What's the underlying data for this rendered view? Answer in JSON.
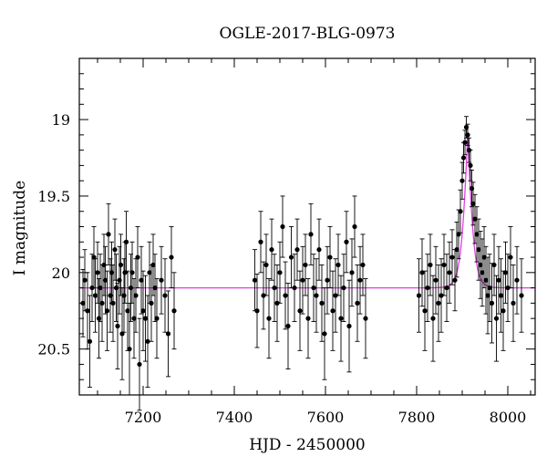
{
  "chart_data": {
    "type": "scatter",
    "title": "OGLE-2017-BLG-0973",
    "xlabel": "HJD - 2450000",
    "ylabel": "I magnitude",
    "xlim": [
      7060,
      8060
    ],
    "ylim": [
      20.8,
      18.6
    ],
    "y_inverted": true,
    "xticks": [
      7200,
      7400,
      7600,
      7800,
      8000
    ],
    "yticks": [
      19,
      19.5,
      20,
      20.5
    ],
    "tick_labels_x": [
      "7200",
      "7400",
      "7600",
      "7800",
      "8000"
    ],
    "tick_labels_y": [
      "19",
      "19.5",
      "20",
      "20.5"
    ],
    "minor_x_step": 50,
    "minor_y_step": 0.1,
    "grid": false,
    "colors": {
      "points": "#000000",
      "model": "#e040e0"
    },
    "model": {
      "baseline_mag": 20.1,
      "peak_time": 7912,
      "peak_mag": 19.1,
      "timescale": 9
    },
    "series": [
      {
        "type": "scatter",
        "x": [
          7068,
          7072,
          7078,
          7083,
          7088,
          7092,
          7095,
          7100,
          7103,
          7106,
          7110,
          7114,
          7117,
          7121,
          7124,
          7128,
          7131,
          7134,
          7138,
          7141,
          7144,
          7148,
          7151,
          7154,
          7158,
          7160,
          7163,
          7166,
          7170,
          7173,
          7176,
          7180,
          7184,
          7188,
          7192,
          7196,
          7200,
          7205,
          7210,
          7214,
          7218,
          7222,
          7226,
          7230,
          7240,
          7248,
          7255,
          7262,
          7268,
          7445,
          7450,
          7458,
          7464,
          7470,
          7476,
          7482,
          7488,
          7494,
          7500,
          7506,
          7512,
          7518,
          7525,
          7532,
          7538,
          7544,
          7550,
          7556,
          7562,
          7568,
          7574,
          7580,
          7586,
          7592,
          7598,
          7604,
          7610,
          7616,
          7622,
          7628,
          7634,
          7640,
          7646,
          7652,
          7658,
          7664,
          7670,
          7676,
          7682,
          7688,
          7805,
          7812,
          7818,
          7824,
          7830,
          7836,
          7842,
          7848,
          7854,
          7860,
          7866,
          7872,
          7878,
          7884,
          7888,
          7892,
          7896,
          7900,
          7903,
          7906,
          7909,
          7912,
          7915,
          7918,
          7921,
          7924,
          7928,
          7932,
          7936,
          7940,
          7944,
          7948,
          7952,
          7956,
          7960,
          7965,
          7970,
          7975,
          7980,
          7985,
          7990,
          7995,
          8000,
          8006,
          8012,
          8020,
          8030
        ],
        "y": [
          20.2,
          20.05,
          20.25,
          20.45,
          20.1,
          19.9,
          20.15,
          20.0,
          20.3,
          20.1,
          20.2,
          19.95,
          20.05,
          20.25,
          19.75,
          20.15,
          20.0,
          20.2,
          19.85,
          20.1,
          20.35,
          20.05,
          19.95,
          20.4,
          20.15,
          20.0,
          19.8,
          20.25,
          20.5,
          20.1,
          20.0,
          20.3,
          20.15,
          19.9,
          20.6,
          20.05,
          20.25,
          20.3,
          20.45,
          20.0,
          20.2,
          19.95,
          20.1,
          20.3,
          20.05,
          20.15,
          20.4,
          19.9,
          20.25,
          20.05,
          20.25,
          19.8,
          20.15,
          19.95,
          20.3,
          19.85,
          20.1,
          20.2,
          20.0,
          19.7,
          20.15,
          20.35,
          19.9,
          20.1,
          19.85,
          20.25,
          20.05,
          19.95,
          20.3,
          19.75,
          20.1,
          20.15,
          19.85,
          20.2,
          20.4,
          20.05,
          19.9,
          20.25,
          20.15,
          19.95,
          20.3,
          20.1,
          19.8,
          20.35,
          20.0,
          19.7,
          20.2,
          20.05,
          19.95,
          20.3,
          20.15,
          20.0,
          20.25,
          20.1,
          19.95,
          20.3,
          20.05,
          20.2,
          20.15,
          19.95,
          20.1,
          20.0,
          19.9,
          20.05,
          19.85,
          19.75,
          19.6,
          19.4,
          19.25,
          19.15,
          19.05,
          19.1,
          19.2,
          19.3,
          19.45,
          19.55,
          19.65,
          19.75,
          19.85,
          19.95,
          20.0,
          19.9,
          20.05,
          20.15,
          20.1,
          20.2,
          19.95,
          20.3,
          20.05,
          20.15,
          20.25,
          20.0,
          20.1,
          19.9,
          20.2,
          20.05,
          20.15
        ],
        "err": [
          0.22,
          0.2,
          0.25,
          0.3,
          0.22,
          0.2,
          0.24,
          0.2,
          0.26,
          0.22,
          0.25,
          0.2,
          0.22,
          0.26,
          0.2,
          0.24,
          0.2,
          0.25,
          0.2,
          0.22,
          0.28,
          0.22,
          0.2,
          0.3,
          0.24,
          0.2,
          0.2,
          0.26,
          0.3,
          0.22,
          0.2,
          0.26,
          0.24,
          0.2,
          0.3,
          0.22,
          0.26,
          0.28,
          0.3,
          0.2,
          0.25,
          0.2,
          0.22,
          0.26,
          0.22,
          0.24,
          0.28,
          0.2,
          0.25,
          0.2,
          0.24,
          0.2,
          0.22,
          0.2,
          0.26,
          0.2,
          0.22,
          0.25,
          0.2,
          0.2,
          0.22,
          0.28,
          0.2,
          0.22,
          0.2,
          0.26,
          0.22,
          0.2,
          0.26,
          0.2,
          0.22,
          0.24,
          0.2,
          0.25,
          0.3,
          0.22,
          0.2,
          0.26,
          0.24,
          0.2,
          0.28,
          0.22,
          0.2,
          0.3,
          0.22,
          0.2,
          0.25,
          0.22,
          0.2,
          0.26,
          0.24,
          0.22,
          0.26,
          0.22,
          0.2,
          0.28,
          0.22,
          0.25,
          0.24,
          0.2,
          0.22,
          0.2,
          0.18,
          0.2,
          0.18,
          0.16,
          0.14,
          0.12,
          0.1,
          0.08,
          0.07,
          0.07,
          0.08,
          0.1,
          0.12,
          0.14,
          0.16,
          0.18,
          0.2,
          0.22,
          0.22,
          0.2,
          0.22,
          0.25,
          0.22,
          0.26,
          0.2,
          0.28,
          0.22,
          0.24,
          0.26,
          0.2,
          0.22,
          0.2,
          0.25,
          0.22,
          0.24
        ]
      }
    ]
  }
}
